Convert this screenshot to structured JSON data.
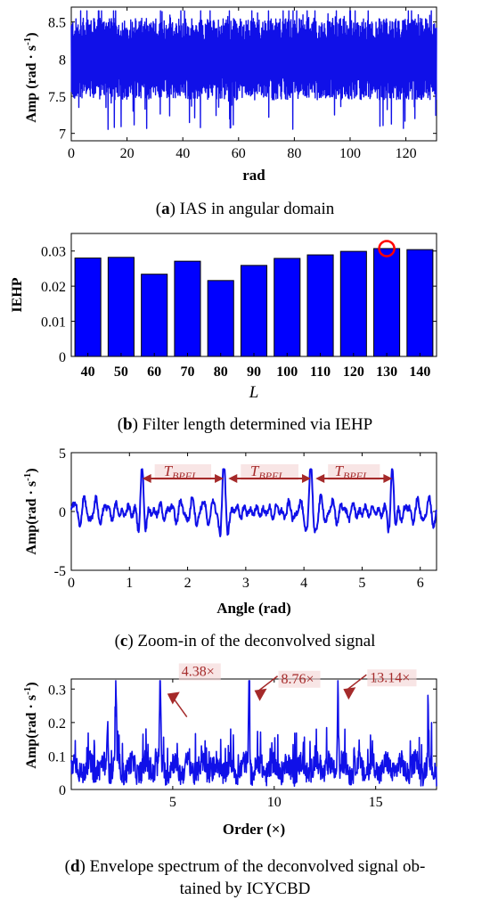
{
  "captions": [
    {
      "letter": "a",
      "text": " IAS in angular domain"
    },
    {
      "letter": "b",
      "text": " Filter length determined via IEHP"
    },
    {
      "letter": "c",
      "text": " Zoom-in of the deconvolved signal"
    },
    {
      "letter": "d",
      "line1": " Envelope spectrum of the deconvolved signal ob-",
      "line2": "tained by ICYCBD"
    }
  ],
  "colors": {
    "signal": "#1010e8",
    "annotation": "#a52a2a",
    "highlight": "#ff0000"
  },
  "chart_data": [
    {
      "id": "a",
      "type": "line",
      "xlabel": "rad",
      "ylabel": "Amp (rad · s",
      "ylabel_sup": "-1",
      "ylabel_close": ")",
      "xlim": [
        0,
        131
      ],
      "ylim": [
        6.9,
        8.7
      ],
      "xticks": [
        0,
        20,
        40,
        60,
        80,
        100,
        120
      ],
      "yticks": [
        7,
        7.5,
        8,
        8.5
      ],
      "signal": {
        "center": 8.0,
        "typical_band": [
          7.5,
          8.5
        ],
        "min": 6.98,
        "max": 8.65
      },
      "grid": false
    },
    {
      "id": "b",
      "type": "bar",
      "categories": [
        "40",
        "50",
        "60",
        "70",
        "80",
        "90",
        "100",
        "110",
        "120",
        "130",
        "140"
      ],
      "values": [
        0.028,
        0.0282,
        0.0234,
        0.0271,
        0.0216,
        0.0259,
        0.0279,
        0.0289,
        0.0299,
        0.0307,
        0.0304
      ],
      "xlabel": "L",
      "ylabel": "IEHP",
      "ylim": [
        0,
        0.035
      ],
      "yticks": [
        0,
        0.01,
        0.02,
        0.03
      ],
      "highlight": {
        "category": "130",
        "value": 0.0307
      },
      "grid": false
    },
    {
      "id": "c",
      "type": "line",
      "xlabel": "Angle (rad)",
      "ylabel": "Amp(rad · s",
      "ylabel_sup": "-1",
      "ylabel_close": ")",
      "xlim": [
        0,
        6.28
      ],
      "ylim": [
        -5,
        5
      ],
      "xticks": [
        0,
        1,
        2,
        3,
        4,
        5,
        6
      ],
      "yticks": [
        -5,
        0,
        5
      ],
      "peaks": [
        1.22,
        2.62,
        4.12,
        5.52
      ],
      "annotations": [
        {
          "label": "T",
          "sub": "BPFI",
          "from": 1.22,
          "to": 2.62,
          "y": 2.8
        },
        {
          "label": "T",
          "sub": "BPFI",
          "from": 2.7,
          "to": 4.12,
          "y": 2.8
        },
        {
          "label": "T",
          "sub": "BPFI",
          "from": 4.2,
          "to": 5.52,
          "y": 2.8
        }
      ],
      "grid": false
    },
    {
      "id": "d",
      "type": "line",
      "xlabel": "Order (×)",
      "ylabel": "Amp(rad · s",
      "ylabel_sup": "-1",
      "ylabel_close": ")",
      "xlim": [
        0,
        18
      ],
      "ylim": [
        0,
        0.33
      ],
      "xticks": [
        5,
        10,
        15
      ],
      "yticks": [
        0,
        0.1,
        0.2,
        0.3
      ],
      "peaks": [
        {
          "x": 4.38,
          "y": 0.318,
          "label": "4.38×"
        },
        {
          "x": 8.76,
          "y": 0.312,
          "label": "8.76×"
        },
        {
          "x": 13.14,
          "y": 0.316,
          "label": "13.14×"
        }
      ],
      "minor_peaks": [
        {
          "x": 2.2,
          "y": 0.265
        },
        {
          "x": 1.8,
          "y": 0.2
        },
        {
          "x": 17.6,
          "y": 0.175
        }
      ],
      "grid": false
    }
  ]
}
